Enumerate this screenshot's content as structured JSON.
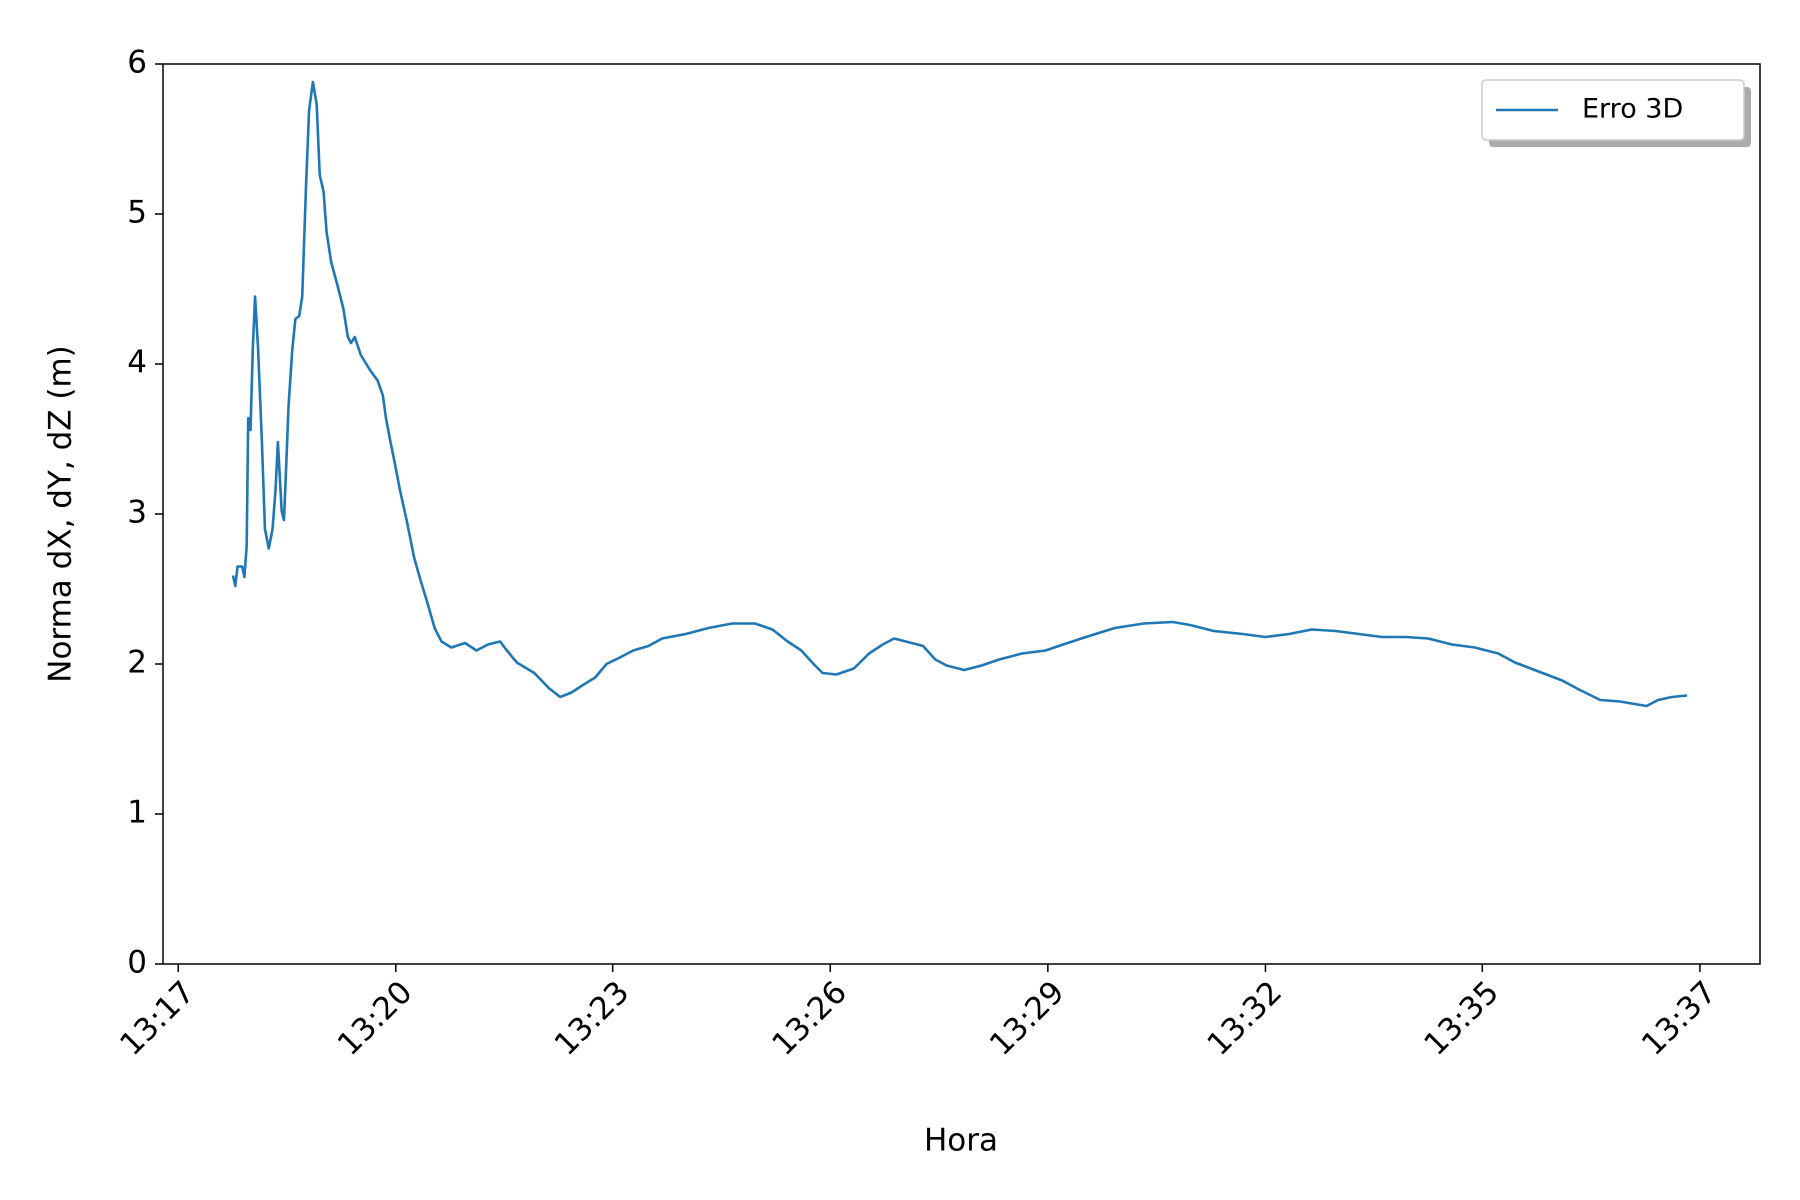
{
  "chart_data": {
    "type": "line",
    "xlabel": "Hora",
    "ylabel": "Norma dX, dY, dZ (m)",
    "xlim": [
      797.7,
      818.69
    ],
    "ylim": [
      0,
      6
    ],
    "xticks": [
      {
        "value": 797.9,
        "label": "13:17"
      },
      {
        "value": 800.76,
        "label": "13:20"
      },
      {
        "value": 803.61,
        "label": "13:23"
      },
      {
        "value": 806.47,
        "label": "13:26"
      },
      {
        "value": 809.33,
        "label": "13:29"
      },
      {
        "value": 812.19,
        "label": "13:32"
      },
      {
        "value": 815.04,
        "label": "13:35"
      },
      {
        "value": 817.9,
        "label": "13:37"
      }
    ],
    "yticks": [
      0,
      1,
      2,
      3,
      4,
      5,
      6
    ],
    "legend": "upper right",
    "x": [
      798.62,
      798.65,
      798.68,
      798.74,
      798.77,
      798.8,
      798.82,
      798.85,
      798.88,
      798.91,
      798.95,
      799.0,
      799.04,
      799.09,
      799.14,
      799.18,
      799.21,
      799.26,
      799.29,
      799.32,
      799.35,
      799.4,
      799.44,
      799.49,
      799.53,
      799.58,
      799.62,
      799.67,
      799.72,
      799.76,
      799.81,
      799.85,
      799.91,
      799.99,
      800.07,
      800.13,
      800.17,
      800.22,
      800.3,
      800.42,
      800.52,
      800.59,
      800.63,
      800.69,
      800.75,
      800.81,
      800.91,
      801.0,
      801.09,
      801.18,
      801.27,
      801.36,
      801.49,
      801.67,
      801.82,
      801.97,
      802.13,
      802.22,
      802.35,
      802.58,
      802.77,
      802.92,
      803.07,
      803.22,
      803.38,
      803.53,
      803.73,
      803.88,
      804.08,
      804.26,
      804.57,
      804.87,
      805.18,
      805.48,
      805.71,
      805.91,
      806.09,
      806.25,
      806.37,
      806.55,
      806.78,
      806.98,
      807.16,
      807.31,
      807.54,
      807.69,
      807.85,
      808.0,
      808.23,
      808.46,
      808.69,
      808.99,
      809.3,
      809.53,
      809.83,
      810.21,
      810.59,
      810.97,
      811.2,
      811.51,
      811.89,
      812.19,
      812.5,
      812.8,
      813.11,
      813.42,
      813.72,
      814.03,
      814.33,
      814.64,
      814.94,
      815.25,
      815.47,
      815.78,
      816.09,
      816.31,
      816.59,
      816.85,
      817.08,
      817.2,
      817.35,
      817.53,
      817.73
    ],
    "series": [
      {
        "name": "Erro 3D",
        "color": "#1f77b4",
        "values": [
          2.59,
          2.52,
          2.65,
          2.65,
          2.58,
          2.79,
          3.64,
          3.56,
          4.1,
          4.45,
          4.1,
          3.48,
          2.9,
          2.77,
          2.9,
          3.17,
          3.48,
          3.02,
          2.96,
          3.33,
          3.72,
          4.1,
          4.3,
          4.32,
          4.45,
          5.19,
          5.69,
          5.88,
          5.73,
          5.26,
          5.15,
          4.88,
          4.68,
          4.53,
          4.37,
          4.18,
          4.14,
          4.18,
          4.06,
          3.96,
          3.89,
          3.79,
          3.64,
          3.48,
          3.33,
          3.17,
          2.94,
          2.71,
          2.55,
          2.4,
          2.24,
          2.15,
          2.11,
          2.14,
          2.09,
          2.13,
          2.15,
          2.09,
          2.01,
          1.94,
          1.84,
          1.78,
          1.81,
          1.86,
          1.91,
          2.0,
          2.05,
          2.09,
          2.12,
          2.17,
          2.2,
          2.24,
          2.27,
          2.27,
          2.23,
          2.15,
          2.09,
          2.0,
          1.94,
          1.93,
          1.97,
          2.07,
          2.13,
          2.17,
          2.14,
          2.12,
          2.03,
          1.99,
          1.96,
          1.99,
          2.03,
          2.07,
          2.09,
          2.13,
          2.18,
          2.24,
          2.27,
          2.28,
          2.26,
          2.22,
          2.2,
          2.18,
          2.2,
          2.23,
          2.22,
          2.2,
          2.18,
          2.18,
          2.17,
          2.13,
          2.11,
          2.07,
          2.01,
          1.95,
          1.89,
          1.83,
          1.76,
          1.75,
          1.73,
          1.72,
          1.76,
          1.78,
          1.79
        ]
      }
    ]
  }
}
